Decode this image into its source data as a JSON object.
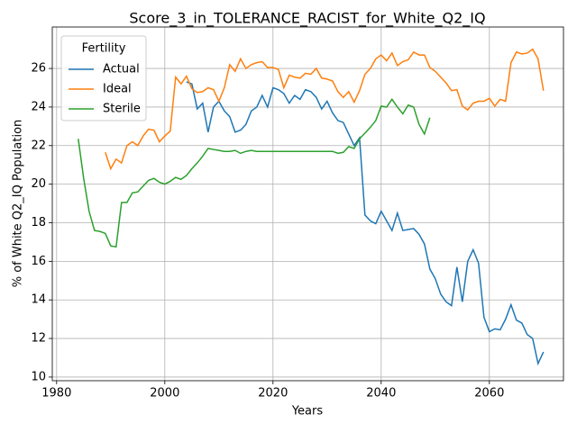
{
  "chart_data": {
    "type": "line",
    "title": "Score_3_in_TOLERANCE_RACIST_for_White_Q2_IQ",
    "x_label": "Years",
    "y_label": "% of White Q2_IQ Population",
    "legend_title": "Fertility",
    "legend_position": "upper left",
    "grid": true,
    "xlim": [
      1979.2,
      2073.7
    ],
    "ylim": [
      9.81,
      28.15
    ],
    "xticks": [
      1980,
      2000,
      2020,
      2040,
      2060
    ],
    "yticks": [
      10,
      12,
      14,
      16,
      18,
      20,
      22,
      24,
      26
    ],
    "x": [
      1984,
      1985,
      1986,
      1987,
      1988,
      1989,
      1990,
      1991,
      1992,
      1993,
      1994,
      1995,
      1996,
      1997,
      1998,
      1999,
      2000,
      2001,
      2002,
      2003,
      2004,
      2005,
      2006,
      2007,
      2008,
      2009,
      2010,
      2011,
      2012,
      2013,
      2014,
      2015,
      2016,
      2017,
      2018,
      2019,
      2020,
      2021,
      2022,
      2023,
      2024,
      2025,
      2026,
      2027,
      2028,
      2029,
      2030,
      2031,
      2032,
      2033,
      2034,
      2035,
      2036,
      2037,
      2038,
      2039,
      2040,
      2041,
      2042,
      2043,
      2044,
      2045,
      2046,
      2047,
      2048,
      2049,
      2050,
      2051,
      2052,
      2053,
      2054,
      2055,
      2056,
      2057,
      2058,
      2059,
      2060,
      2061,
      2062,
      2063,
      2064,
      2065,
      2066,
      2067,
      2068,
      2069,
      2070
    ],
    "series": [
      {
        "name": "Actual",
        "color": "#1f77b4",
        "values": [
          null,
          null,
          null,
          null,
          null,
          null,
          null,
          null,
          null,
          null,
          null,
          null,
          null,
          null,
          null,
          null,
          null,
          null,
          null,
          null,
          25.3,
          25.2,
          23.9,
          24.2,
          22.7,
          24.0,
          24.3,
          23.8,
          23.5,
          22.7,
          22.8,
          23.1,
          23.8,
          24.0,
          24.6,
          24.0,
          25.0,
          24.9,
          24.7,
          24.2,
          24.6,
          24.4,
          24.9,
          24.8,
          24.5,
          23.9,
          24.3,
          23.7,
          23.3,
          23.2,
          22.6,
          22.0,
          22.4,
          18.4,
          18.1,
          17.95,
          18.6,
          18.1,
          17.6,
          18.5,
          17.6,
          17.65,
          17.7,
          17.4,
          16.9,
          15.6,
          15.1,
          14.3,
          13.9,
          13.7,
          15.7,
          13.9,
          16.0,
          16.6,
          15.9,
          13.1,
          12.35,
          12.5,
          12.45,
          13.0,
          13.75,
          12.95,
          12.8,
          12.2,
          12.0,
          10.7,
          11.3
        ]
      },
      {
        "name": "Ideal",
        "color": "#ff7f0e",
        "values": [
          null,
          null,
          null,
          null,
          null,
          21.65,
          20.8,
          21.3,
          21.1,
          22.0,
          22.2,
          22.0,
          22.5,
          22.85,
          22.8,
          22.2,
          22.5,
          22.75,
          25.55,
          25.2,
          25.6,
          24.95,
          24.75,
          24.8,
          25.0,
          24.9,
          24.3,
          25.0,
          26.2,
          25.85,
          26.5,
          26.0,
          26.2,
          26.3,
          26.35,
          26.05,
          26.05,
          25.95,
          25.0,
          25.65,
          25.55,
          25.5,
          25.75,
          25.7,
          26.0,
          25.5,
          25.45,
          25.35,
          24.8,
          24.5,
          24.8,
          24.25,
          24.85,
          25.7,
          26.0,
          26.5,
          26.7,
          26.4,
          26.8,
          26.15,
          26.35,
          26.45,
          26.85,
          26.7,
          26.7,
          26.05,
          25.85,
          25.55,
          25.25,
          24.85,
          24.9,
          24.05,
          23.85,
          24.2,
          24.3,
          24.3,
          24.45,
          24.05,
          24.4,
          24.3,
          26.3,
          26.85,
          26.75,
          26.8,
          27.0,
          26.5,
          24.85
        ]
      },
      {
        "name": "Sterile",
        "color": "#2ca02c",
        "values": [
          22.35,
          20.3,
          18.6,
          17.6,
          17.55,
          17.45,
          16.8,
          16.75,
          19.05,
          19.05,
          19.55,
          19.6,
          19.9,
          20.2,
          20.3,
          20.1,
          20.0,
          20.15,
          20.35,
          20.25,
          20.45,
          20.8,
          21.1,
          21.45,
          21.85,
          21.8,
          21.75,
          21.7,
          21.7,
          21.75,
          21.6,
          21.7,
          21.75,
          21.7,
          21.7,
          21.7,
          21.7,
          21.7,
          21.7,
          21.7,
          21.7,
          21.7,
          21.7,
          21.7,
          21.7,
          21.7,
          21.7,
          21.7,
          21.6,
          21.65,
          21.95,
          21.85,
          22.35,
          22.65,
          22.95,
          23.3,
          24.05,
          24.0,
          24.4,
          24.0,
          23.65,
          24.1,
          24.0,
          23.1,
          22.6,
          23.45,
          null,
          null,
          null,
          null,
          null,
          null,
          null,
          null,
          null,
          null,
          null,
          null,
          null,
          null,
          null,
          null,
          null,
          null,
          null,
          null,
          null
        ]
      }
    ]
  }
}
